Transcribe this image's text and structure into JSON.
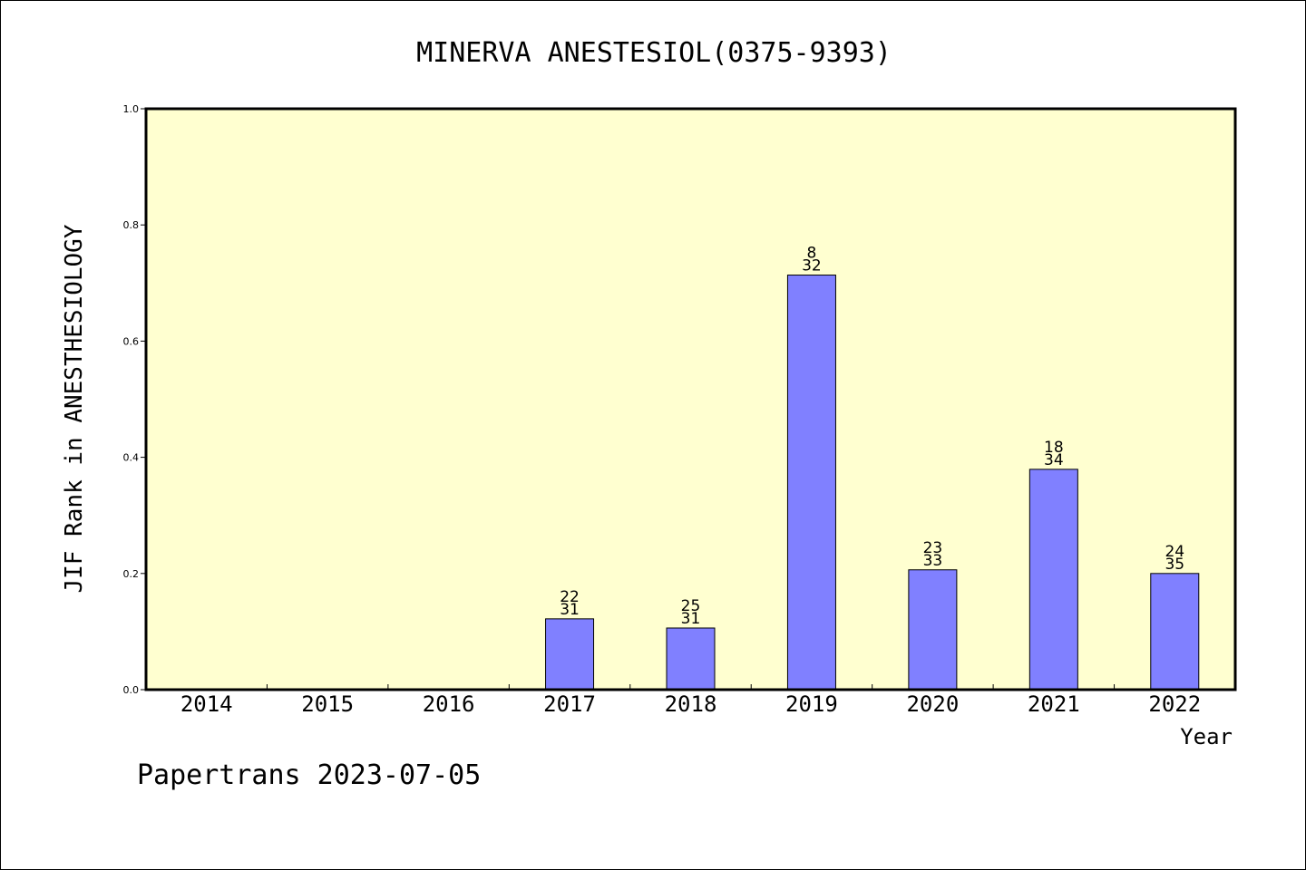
{
  "chart_data": {
    "type": "bar",
    "title": "MINERVA ANESTESIOL(0375-9393)",
    "xlabel": "Year",
    "ylabel": "JIF Rank in ANESTHESIOLOGY",
    "ylim": [
      0,
      1.0
    ],
    "yticks": [
      "0.0",
      "0.2",
      "0.4",
      "0.6",
      "0.8",
      "1.0"
    ],
    "grid": false,
    "legend": "none",
    "categories": [
      "2014",
      "2015",
      "2016",
      "2017",
      "2018",
      "2019",
      "2020",
      "2021",
      "2022"
    ],
    "values": [
      null,
      null,
      null,
      0.1219,
      0.1061,
      0.7137,
      0.2063,
      0.3793,
      0.2
    ],
    "rank": [
      null,
      null,
      null,
      "22",
      "25",
      "8",
      "23",
      "18",
      "24"
    ],
    "total": [
      null,
      null,
      null,
      "31",
      "31",
      "32",
      "33",
      "34",
      "35"
    ],
    "colors": {
      "bar": "#8080ff",
      "plot_bg": "#ffffd0",
      "axis": "#000000"
    }
  },
  "footer": "Papertrans 2023-07-05"
}
